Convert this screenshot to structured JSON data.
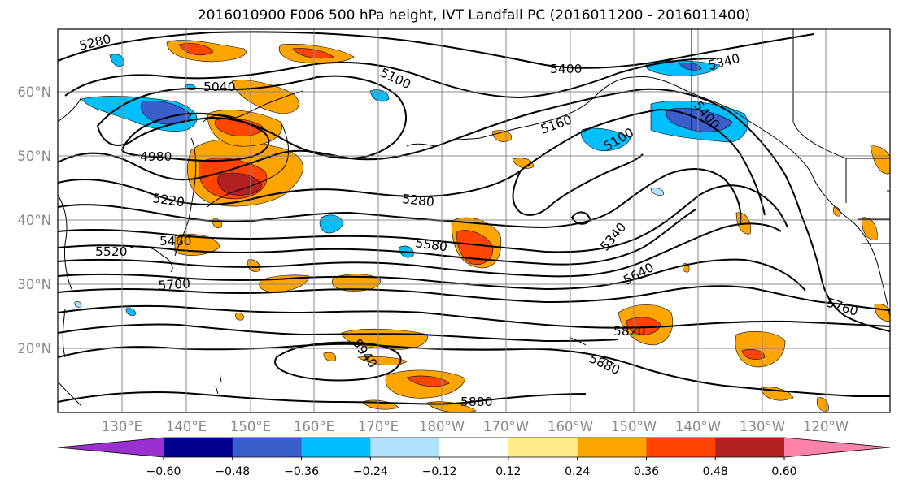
{
  "title": "2016010900 F006 500 hPa height, IVT Landfall PC (2016011200 - 2016011400)",
  "lat_labels": [
    "60°N",
    "50°N",
    "40°N",
    "30°N",
    "20°N"
  ],
  "lon_labels": [
    "130°E",
    "140°E",
    "150°E",
    "160°E",
    "170°E",
    "180°W",
    "170°W",
    "160°W",
    "150°W",
    "140°W",
    "130°W",
    "120°W"
  ],
  "contour_labels": [
    "5280",
    "5040",
    "5100",
    "4980",
    "5220",
    "5280",
    "5520",
    "5460",
    "5580",
    "5700",
    "5400",
    "5340",
    "5400",
    "5160",
    "5100",
    "5340",
    "5640",
    "5760",
    "5820",
    "5880",
    "5940",
    "5880"
  ],
  "colorbar": {
    "colors": [
      "#9b30d0",
      "#00008b",
      "#3a5fcd",
      "#00bfff",
      "#b0e2ff",
      "#ffffff",
      "#ffec8b",
      "#ffa500",
      "#ff4500",
      "#b22222",
      "#ff82ab"
    ],
    "tick_labels": [
      "−0.60",
      "−0.48",
      "−0.36",
      "−0.24",
      "−0.12",
      "0.12",
      "0.24",
      "0.36",
      "0.48",
      "0.60"
    ]
  }
}
